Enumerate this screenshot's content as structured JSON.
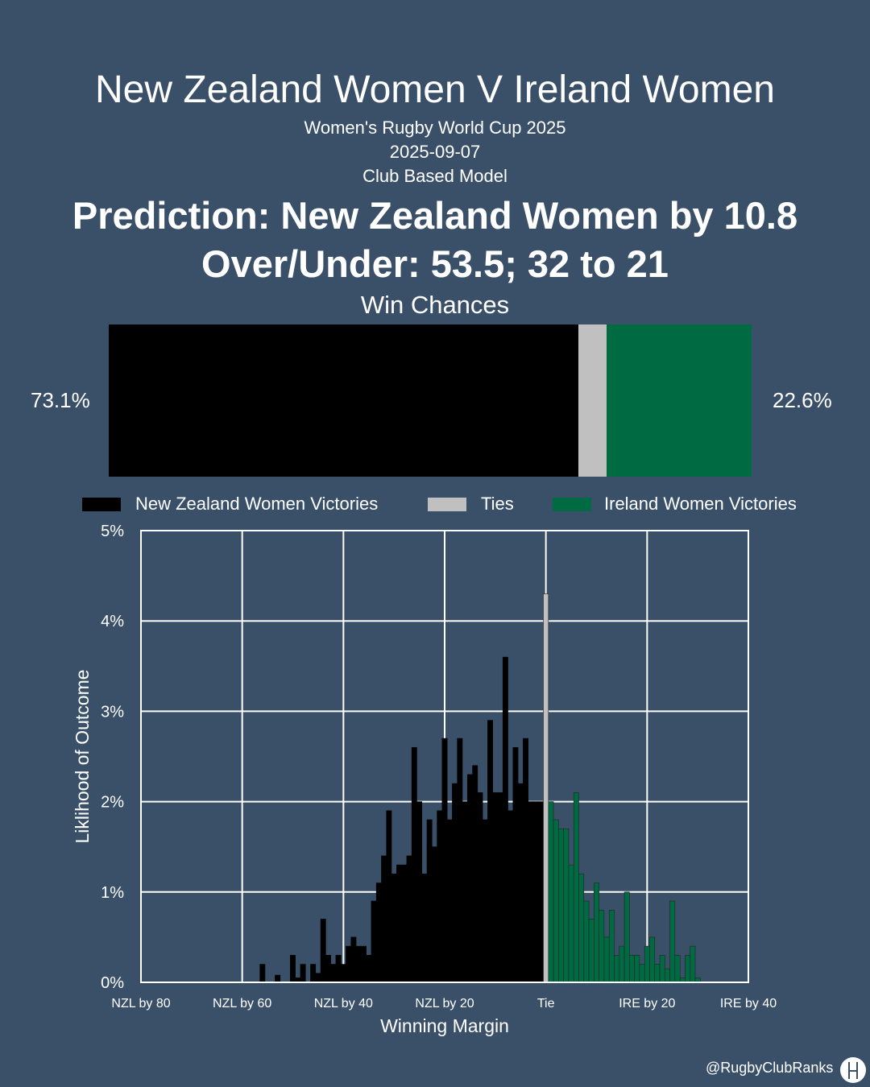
{
  "header": {
    "title": "New Zealand Women V Ireland Women",
    "competition": "Women's Rugby World Cup 2025",
    "date": "2025-09-07",
    "model": "Club Based Model",
    "prediction": "Prediction: New Zealand Women by 10.8",
    "over_under": "Over/Under: 53.5; 32 to 21"
  },
  "win_chances": {
    "title": "Win Chances",
    "home_pct": 73.1,
    "tie_pct": 4.3,
    "away_pct": 22.6,
    "home_label": "73.1%",
    "away_label": "22.6%"
  },
  "colors": {
    "background": "#3a5068",
    "home": "#000000",
    "tie": "#c0c0c0",
    "away": "#006a43"
  },
  "legend": {
    "home": "New Zealand Women Victories",
    "tie": "Ties",
    "away": "Ireland Women Victories"
  },
  "chart_data": {
    "type": "bar",
    "xlabel": "Winning Margin",
    "ylabel": "Liklihood of Outcome",
    "xlim": [
      -80,
      40
    ],
    "ylim": [
      0,
      5
    ],
    "x_note": "negative = New Zealand Women winning margin, positive = Ireland Women winning margin",
    "x_ticks": [
      -80,
      -60,
      -40,
      -20,
      0,
      20,
      40
    ],
    "x_tick_labels": [
      "NZL by 80",
      "NZL by 60",
      "NZL by 40",
      "NZL by 20",
      "Tie",
      "IRE by 20",
      "IRE by 40"
    ],
    "y_ticks": [
      0,
      1,
      2,
      3,
      4,
      5
    ],
    "y_tick_labels": [
      "0%",
      "1%",
      "2%",
      "3%",
      "4%",
      "5%"
    ],
    "grid": true,
    "series": [
      {
        "name": "New Zealand Women Victories",
        "color": "#000000",
        "x": [
          -56,
          -53,
          -50,
          -49,
          -48,
          -46,
          -45,
          -44,
          -43,
          -42,
          -41,
          -40,
          -39,
          -38,
          -37,
          -36,
          -35,
          -34,
          -33,
          -32,
          -31,
          -30,
          -29,
          -28,
          -27,
          -26,
          -25,
          -24,
          -23,
          -22,
          -21,
          -20,
          -19,
          -18,
          -17,
          -16,
          -15,
          -14,
          -13,
          -12,
          -11,
          -10,
          -9,
          -8,
          -7,
          -6,
          -5,
          -4,
          -3,
          -2,
          -1
        ],
        "values": [
          0.2,
          0.08,
          0.3,
          0.05,
          0.2,
          0.2,
          0.1,
          0.7,
          0.3,
          0.2,
          0.3,
          0.2,
          0.4,
          0.5,
          0.4,
          0.4,
          0.3,
          0.9,
          1.1,
          1.4,
          1.9,
          1.2,
          1.3,
          1.3,
          1.4,
          2.6,
          2.0,
          1.2,
          1.8,
          1.5,
          1.9,
          2.7,
          1.8,
          2.2,
          2.7,
          2.0,
          2.3,
          2.4,
          2.1,
          1.8,
          2.9,
          2.1,
          2.1,
          3.6,
          1.9,
          2.6,
          2.2,
          2.7,
          2.0,
          2.0,
          2.0
        ]
      },
      {
        "name": "Ties",
        "color": "#c0c0c0",
        "x": [
          0
        ],
        "values": [
          4.3
        ]
      },
      {
        "name": "Ireland Women Victories",
        "color": "#006a43",
        "x": [
          1,
          2,
          3,
          4,
          5,
          6,
          7,
          8,
          9,
          10,
          11,
          12,
          13,
          14,
          15,
          16,
          17,
          18,
          19,
          20,
          21,
          22,
          23,
          24,
          25,
          26,
          27,
          28,
          29,
          30
        ],
        "values": [
          2.0,
          1.8,
          1.7,
          1.7,
          1.3,
          2.1,
          1.2,
          0.9,
          0.7,
          1.1,
          0.8,
          0.5,
          0.8,
          0.3,
          0.4,
          1.0,
          0.3,
          0.3,
          0.2,
          0.4,
          0.5,
          0.2,
          0.3,
          0.15,
          0.9,
          0.3,
          0.05,
          0.3,
          0.4,
          0.05
        ]
      }
    ]
  },
  "footer": {
    "credit": "@RugbyClubRanks",
    "logo_icon": "goalposts-logo-icon"
  }
}
